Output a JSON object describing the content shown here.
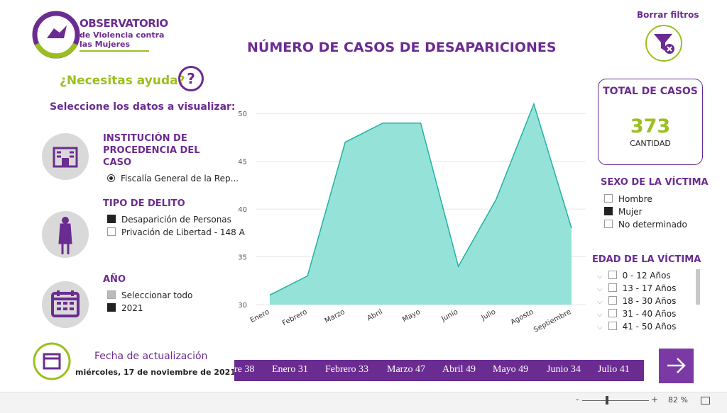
{
  "logo": {
    "line1": "OBSERVATORIO",
    "line2": "de Violencia contra",
    "line3": "las Mujeres"
  },
  "help": {
    "text": "¿Necesitas ayuda?",
    "icon": "?"
  },
  "prompt": "Seleccione los datos a visualizar:",
  "filters": [
    {
      "title": "INSTITUCIÓN DE PROCEDENCIA DEL CASO",
      "kind": "radio",
      "options": [
        {
          "label": "Fiscalía General de la Rep...",
          "state": "checked"
        }
      ]
    },
    {
      "title": "TIPO DE DELITO",
      "kind": "box",
      "options": [
        {
          "label": "Desaparición de Personas",
          "state": "checked"
        },
        {
          "label": "Privación de Libertad - 148 A",
          "state": "unchecked"
        }
      ]
    },
    {
      "title": "AÑO",
      "kind": "box",
      "options": [
        {
          "label": "Seleccionar todo",
          "state": "partial"
        },
        {
          "label": "2021",
          "state": "checked"
        }
      ]
    }
  ],
  "update": {
    "label": "Fecha de actualización",
    "date": "miércoles, 17 de noviembre de 2021"
  },
  "ticker": [
    "re 38",
    "Enero 31",
    "Febrero 33",
    "Marzo 47",
    "Abril 49",
    "Mayo 49",
    "Junio 34",
    "Julio 41"
  ],
  "clear_filters": "Borrar filtros",
  "total": {
    "title": "TOTAL DE CASOS",
    "value": 373,
    "caption": "CANTIDAD"
  },
  "sex": {
    "title": "SEXO DE LA VÍCTIMA",
    "options": [
      {
        "label": "Hombre",
        "state": "unchecked"
      },
      {
        "label": "Mujer",
        "state": "checked"
      },
      {
        "label": "No determinado",
        "state": "unchecked"
      }
    ]
  },
  "age": {
    "title": "EDAD DE LA VÍCTIMA",
    "options": [
      {
        "label": "0 - 12 Años",
        "state": "unchecked"
      },
      {
        "label": "13 - 17 Años",
        "state": "unchecked"
      },
      {
        "label": "18 - 30 Años",
        "state": "unchecked"
      },
      {
        "label": "31 - 40 Años",
        "state": "unchecked"
      },
      {
        "label": "41 - 50 Años",
        "state": "unchecked"
      }
    ]
  },
  "zoom": {
    "minus": "-",
    "plus": "+",
    "level": "82 %"
  },
  "chart_data": {
    "type": "area",
    "title": "NÚMERO DE CASOS DE DESAPARICIONES",
    "categories": [
      "Enero",
      "Febrero",
      "Marzo",
      "Abril",
      "Mayo",
      "Junio",
      "Julio",
      "Agosto",
      "Septiembre"
    ],
    "values": [
      31,
      33,
      47,
      49,
      49,
      34,
      41,
      51,
      38
    ],
    "color": "#20b3a3",
    "fill": "#95e2d9",
    "ylim": [
      30,
      51.5
    ],
    "yticks": [
      30,
      35,
      40,
      45,
      50
    ],
    "grid": true
  }
}
